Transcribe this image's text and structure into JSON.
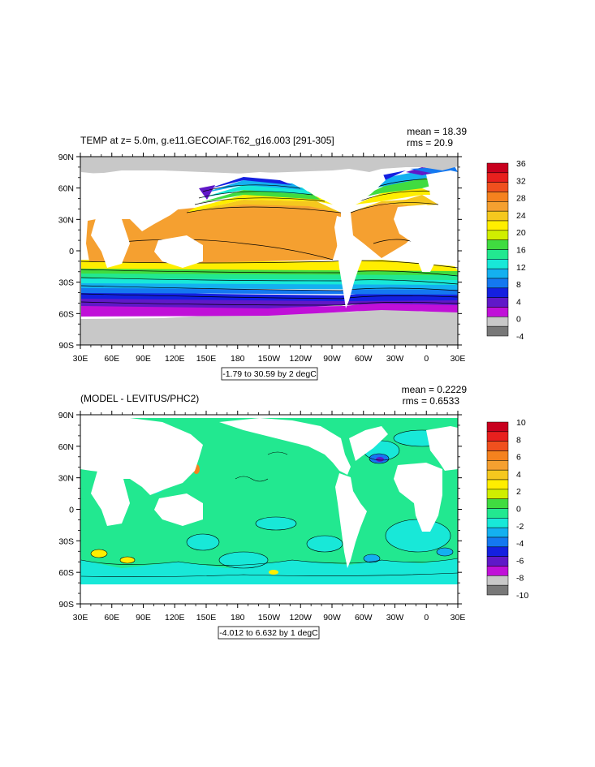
{
  "panels": [
    {
      "id": "temp",
      "title": "TEMP at z=   5.0m, g.e11.GECOIAF.T62_g16.003 [291-305]",
      "mean": "mean = 18.39",
      "rms": "rms = 20.9",
      "range_label": "-1.79 to 30.59 by 2 degC",
      "colorbar": {
        "labels": [
          "36",
          "32",
          "28",
          "24",
          "20",
          "16",
          "12",
          "8",
          "4",
          "0",
          "-4"
        ],
        "colors": [
          "#c8001e",
          "#e8201e",
          "#f0501e",
          "#f5821e",
          "#f5a030",
          "#f5c81e",
          "#ffee00",
          "#d0ee00",
          "#40dc40",
          "#22e890",
          "#18e8d8",
          "#14b0f0",
          "#1478f0",
          "#1420e0",
          "#6018c8",
          "#c010d8",
          "#c8c8c8",
          "#787878"
        ]
      },
      "x_ticks": [
        "30E",
        "60E",
        "90E",
        "120E",
        "150E",
        "180",
        "150W",
        "120W",
        "90W",
        "60W",
        "30W",
        "0",
        "30E"
      ],
      "y_ticks": [
        "90N",
        "60N",
        "30N",
        "0",
        "30S",
        "60S",
        "90S"
      ]
    },
    {
      "id": "diff",
      "title": "(MODEL - LEVITUS/PHC2)",
      "mean": "mean = 0.2229",
      "rms": "rms = 0.6533",
      "range_label": "-4.012 to 6.632 by 1 degC",
      "colorbar": {
        "labels": [
          "10",
          "8",
          "6",
          "4",
          "2",
          "0",
          "-2",
          "-4",
          "-6",
          "-8",
          "-10"
        ],
        "colors": [
          "#c8001e",
          "#e8201e",
          "#f0501e",
          "#f5821e",
          "#f5a030",
          "#f5c81e",
          "#ffee00",
          "#d0ee00",
          "#40dc40",
          "#22e890",
          "#18e8d8",
          "#14b0f0",
          "#1478f0",
          "#1420e0",
          "#6018c8",
          "#c010d8",
          "#c8c8c8",
          "#787878"
        ]
      },
      "x_ticks": [
        "30E",
        "60E",
        "90E",
        "120E",
        "150E",
        "180",
        "150W",
        "120W",
        "90W",
        "60W",
        "30W",
        "0",
        "30E"
      ],
      "y_ticks": [
        "90N",
        "60N",
        "30N",
        "0",
        "30S",
        "60S",
        "90S"
      ]
    }
  ]
}
